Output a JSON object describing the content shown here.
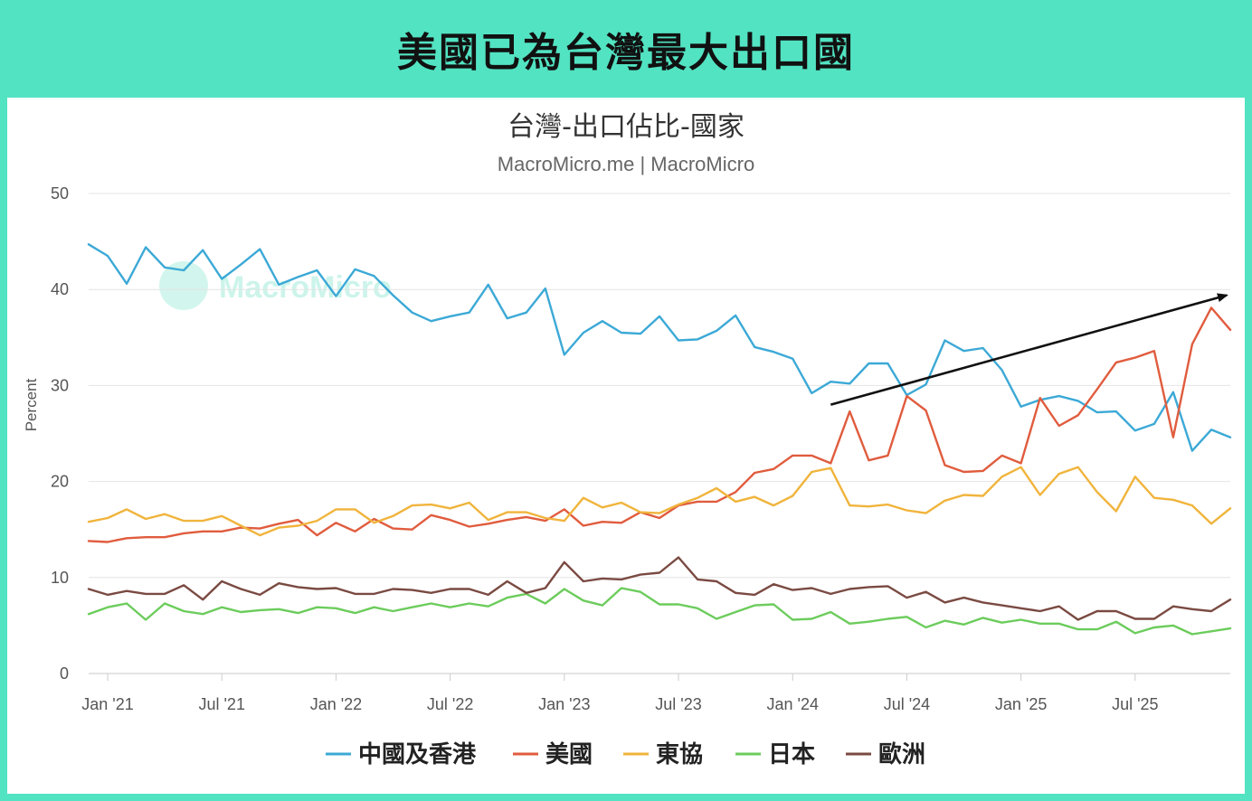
{
  "banner": {
    "title": "美國已為台灣最大出口國"
  },
  "chart_data": {
    "type": "line",
    "title": "台灣-出口佔比-國家",
    "subtitle": "MacroMicro.me | MacroMicro",
    "watermark": "MacroMicro",
    "xlabel": "",
    "ylabel": "Percent",
    "ylim": [
      0,
      50
    ],
    "yticks": [
      0,
      10,
      20,
      30,
      40,
      50
    ],
    "x_start": "2020-12",
    "x_ticks": [
      {
        "label": "Jan '21",
        "index": 1
      },
      {
        "label": "Jul '21",
        "index": 7
      },
      {
        "label": "Jan '22",
        "index": 13
      },
      {
        "label": "Jul '22",
        "index": 19
      },
      {
        "label": "Jan '23",
        "index": 25
      },
      {
        "label": "Jul '23",
        "index": 31
      },
      {
        "label": "Jan '24",
        "index": 37
      },
      {
        "label": "Jul '24",
        "index": 43
      },
      {
        "label": "Jan '25",
        "index": 49
      },
      {
        "label": "Jul '25",
        "index": 55
      }
    ],
    "grid": true,
    "legend_position": "bottom-center",
    "series": [
      {
        "name": "中國及香港",
        "color": "#3ca9d6",
        "values": [
          44.7,
          43.5,
          40.6,
          44.4,
          42.3,
          42.0,
          44.1,
          41.1,
          42.6,
          44.2,
          40.5,
          41.3,
          42.0,
          39.3,
          42.1,
          41.4,
          39.4,
          37.6,
          36.7,
          37.2,
          37.6,
          40.5,
          37.0,
          37.6,
          40.1,
          33.2,
          35.5,
          36.7,
          35.5,
          35.4,
          37.2,
          34.7,
          34.8,
          35.7,
          37.3,
          34.0,
          33.5,
          32.8,
          29.2,
          30.4,
          30.2,
          32.3,
          32.3,
          29.0,
          30.1,
          34.7,
          33.6,
          33.9,
          31.6,
          27.8,
          28.5,
          28.9,
          28.4,
          27.2,
          27.3,
          25.3,
          26.0,
          29.3,
          23.2,
          25.4,
          24.6
        ]
      },
      {
        "name": "美國",
        "color": "#e05c3e",
        "values": [
          13.8,
          13.7,
          14.1,
          14.2,
          14.2,
          14.6,
          14.8,
          14.8,
          15.2,
          15.1,
          15.6,
          16.0,
          14.4,
          15.7,
          14.8,
          16.1,
          15.1,
          15.0,
          16.5,
          16.0,
          15.3,
          15.6,
          16.0,
          16.3,
          15.9,
          17.1,
          15.4,
          15.8,
          15.7,
          16.8,
          16.2,
          17.5,
          17.9,
          17.9,
          18.9,
          20.9,
          21.3,
          22.7,
          22.7,
          21.9,
          27.3,
          22.2,
          22.7,
          28.9,
          27.4,
          21.7,
          21.0,
          21.1,
          22.7,
          21.9,
          28.7,
          25.8,
          26.9,
          29.6,
          32.4,
          32.9,
          33.6,
          24.6,
          34.3,
          38.1,
          35.8
        ]
      },
      {
        "name": "東協",
        "color": "#f0b43c",
        "values": [
          15.8,
          16.2,
          17.1,
          16.1,
          16.6,
          15.9,
          15.9,
          16.4,
          15.4,
          14.4,
          15.2,
          15.4,
          15.9,
          17.1,
          17.1,
          15.7,
          16.4,
          17.5,
          17.6,
          17.2,
          17.8,
          16.0,
          16.8,
          16.8,
          16.2,
          15.9,
          18.3,
          17.3,
          17.8,
          16.8,
          16.7,
          17.6,
          18.3,
          19.3,
          17.9,
          18.4,
          17.5,
          18.5,
          21.0,
          21.4,
          17.5,
          17.4,
          17.6,
          17.0,
          16.7,
          18.0,
          18.6,
          18.5,
          20.5,
          21.5,
          18.6,
          20.8,
          21.5,
          18.9,
          16.9,
          20.5,
          18.3,
          18.1,
          17.5,
          15.6,
          17.2
        ]
      },
      {
        "name": "日本",
        "color": "#6ccc5c",
        "values": [
          6.2,
          6.9,
          7.3,
          5.6,
          7.3,
          6.5,
          6.2,
          6.9,
          6.4,
          6.6,
          6.7,
          6.3,
          6.9,
          6.8,
          6.3,
          6.9,
          6.5,
          6.9,
          7.3,
          6.9,
          7.3,
          7.0,
          7.9,
          8.3,
          7.3,
          8.8,
          7.6,
          7.1,
          8.9,
          8.5,
          7.2,
          7.2,
          6.8,
          5.7,
          6.4,
          7.1,
          7.2,
          5.6,
          5.7,
          6.4,
          5.2,
          5.4,
          5.7,
          5.9,
          4.8,
          5.5,
          5.1,
          5.8,
          5.3,
          5.6,
          5.2,
          5.2,
          4.6,
          4.6,
          5.4,
          4.2,
          4.8,
          5.0,
          4.1,
          4.4,
          4.7
        ]
      },
      {
        "name": "歐洲",
        "color": "#7a4a42",
        "values": [
          8.8,
          8.2,
          8.6,
          8.3,
          8.3,
          9.2,
          7.7,
          9.6,
          8.8,
          8.2,
          9.4,
          9.0,
          8.8,
          8.9,
          8.3,
          8.3,
          8.8,
          8.7,
          8.4,
          8.8,
          8.8,
          8.2,
          9.6,
          8.4,
          8.9,
          11.6,
          9.6,
          9.9,
          9.8,
          10.3,
          10.5,
          12.1,
          9.8,
          9.6,
          8.4,
          8.2,
          9.3,
          8.7,
          8.9,
          8.3,
          8.8,
          9.0,
          9.1,
          7.9,
          8.5,
          7.4,
          7.9,
          7.4,
          7.1,
          6.8,
          6.5,
          7.0,
          5.6,
          6.5,
          6.5,
          5.7,
          5.7,
          7.0,
          6.7,
          6.5,
          7.7
        ]
      }
    ],
    "annotations": [
      {
        "type": "arrow",
        "from": {
          "index": 39,
          "value": 28.0
        },
        "to": {
          "index": 60,
          "value": 39.4
        }
      }
    ]
  }
}
